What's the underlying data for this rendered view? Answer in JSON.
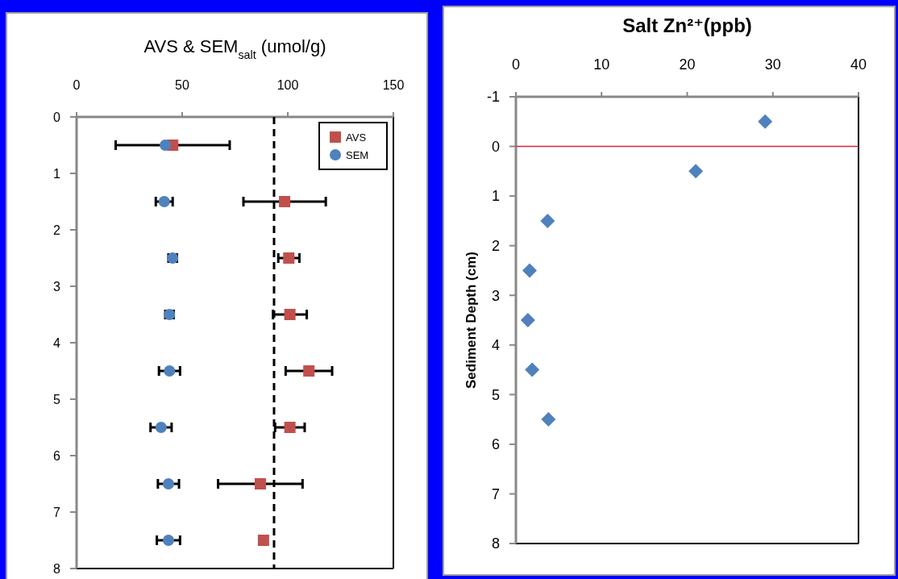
{
  "chart_data": [
    {
      "type": "scatter",
      "xlabel": "AVS & SEM$_{salt}$ (umol/g)",
      "xlim": [
        0,
        150
      ],
      "xticks": [
        0,
        50,
        100,
        150
      ],
      "ylim": [
        8,
        0
      ],
      "yticks": [
        0,
        1,
        2,
        3,
        4,
        5,
        6,
        7,
        8
      ],
      "grid": false,
      "legend": "top right",
      "series": [
        {
          "name": "AVS",
          "color": "#c0504d",
          "marker": "square",
          "x": [
            45.5,
            98.5,
            100.5,
            101,
            110,
            101,
            87,
            88.5
          ],
          "values": [
            0.5,
            1.5,
            2.5,
            3.5,
            4.5,
            5.5,
            6.5,
            7.5
          ],
          "xerrors": [
            27,
            19.5,
            5,
            8,
            11,
            7,
            20,
            null
          ]
        },
        {
          "name": "SEM",
          "color": "#4f81bd",
          "marker": "circle",
          "x": [
            42,
            41.5,
            45.5,
            44,
            44,
            40,
            43.5,
            43.5
          ],
          "values": [
            0.5,
            1.5,
            2.5,
            3.5,
            4.5,
            5.5,
            6.5,
            7.5
          ],
          "xerrors": [
            null,
            4,
            2,
            2,
            5,
            5,
            5,
            5.5
          ]
        }
      ],
      "ref_lines": [
        {
          "axis": "x",
          "value": 93.5,
          "color": "#000000",
          "line_style": "dashed"
        }
      ]
    },
    {
      "type": "scatter",
      "xlabel": "Salt Zn²⁺(ppb)",
      "ylabel": "Sediment Depth (cm)",
      "xlim": [
        0,
        40
      ],
      "xticks": [
        0,
        10,
        20,
        30,
        40
      ],
      "ylim": [
        8,
        -1
      ],
      "yticks": [
        -1,
        0,
        1,
        2,
        3,
        4,
        5,
        6,
        7,
        8
      ],
      "grid": false,
      "legend": false,
      "series": [
        {
          "color": "#4f81bd",
          "marker": "diamond",
          "x": [
            29.1,
            21,
            3.7,
            1.6,
            1.4,
            1.9,
            3.8
          ],
          "values": [
            -0.5,
            0.5,
            1.5,
            2.5,
            3.5,
            4.5,
            5.5
          ]
        }
      ],
      "ref_lines": [
        {
          "axis": "y",
          "value": 0,
          "color": "#e8203a",
          "line_style": "solid"
        }
      ]
    }
  ]
}
